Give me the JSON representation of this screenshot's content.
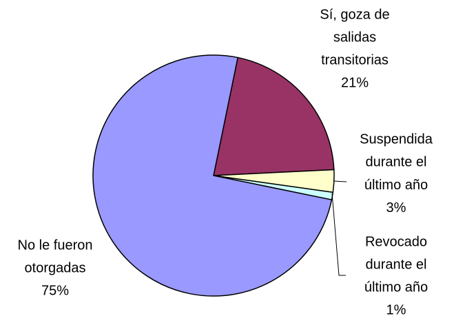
{
  "chart_data": {
    "type": "pie",
    "categories": [
      [
        "Sí, goza de",
        "salidas",
        "transitorias"
      ],
      [
        "Suspendida",
        "durante el",
        "último año"
      ],
      [
        "Revocado",
        "durante el",
        "último año"
      ],
      [
        "No le fueron",
        "otorgadas"
      ]
    ],
    "values": [
      21,
      3,
      1,
      75
    ],
    "value_labels": [
      "21%",
      "3%",
      "1%",
      "75%"
    ],
    "colors": [
      "#993366",
      "#ffffcc",
      "#ccffff",
      "#9999ff"
    ]
  }
}
